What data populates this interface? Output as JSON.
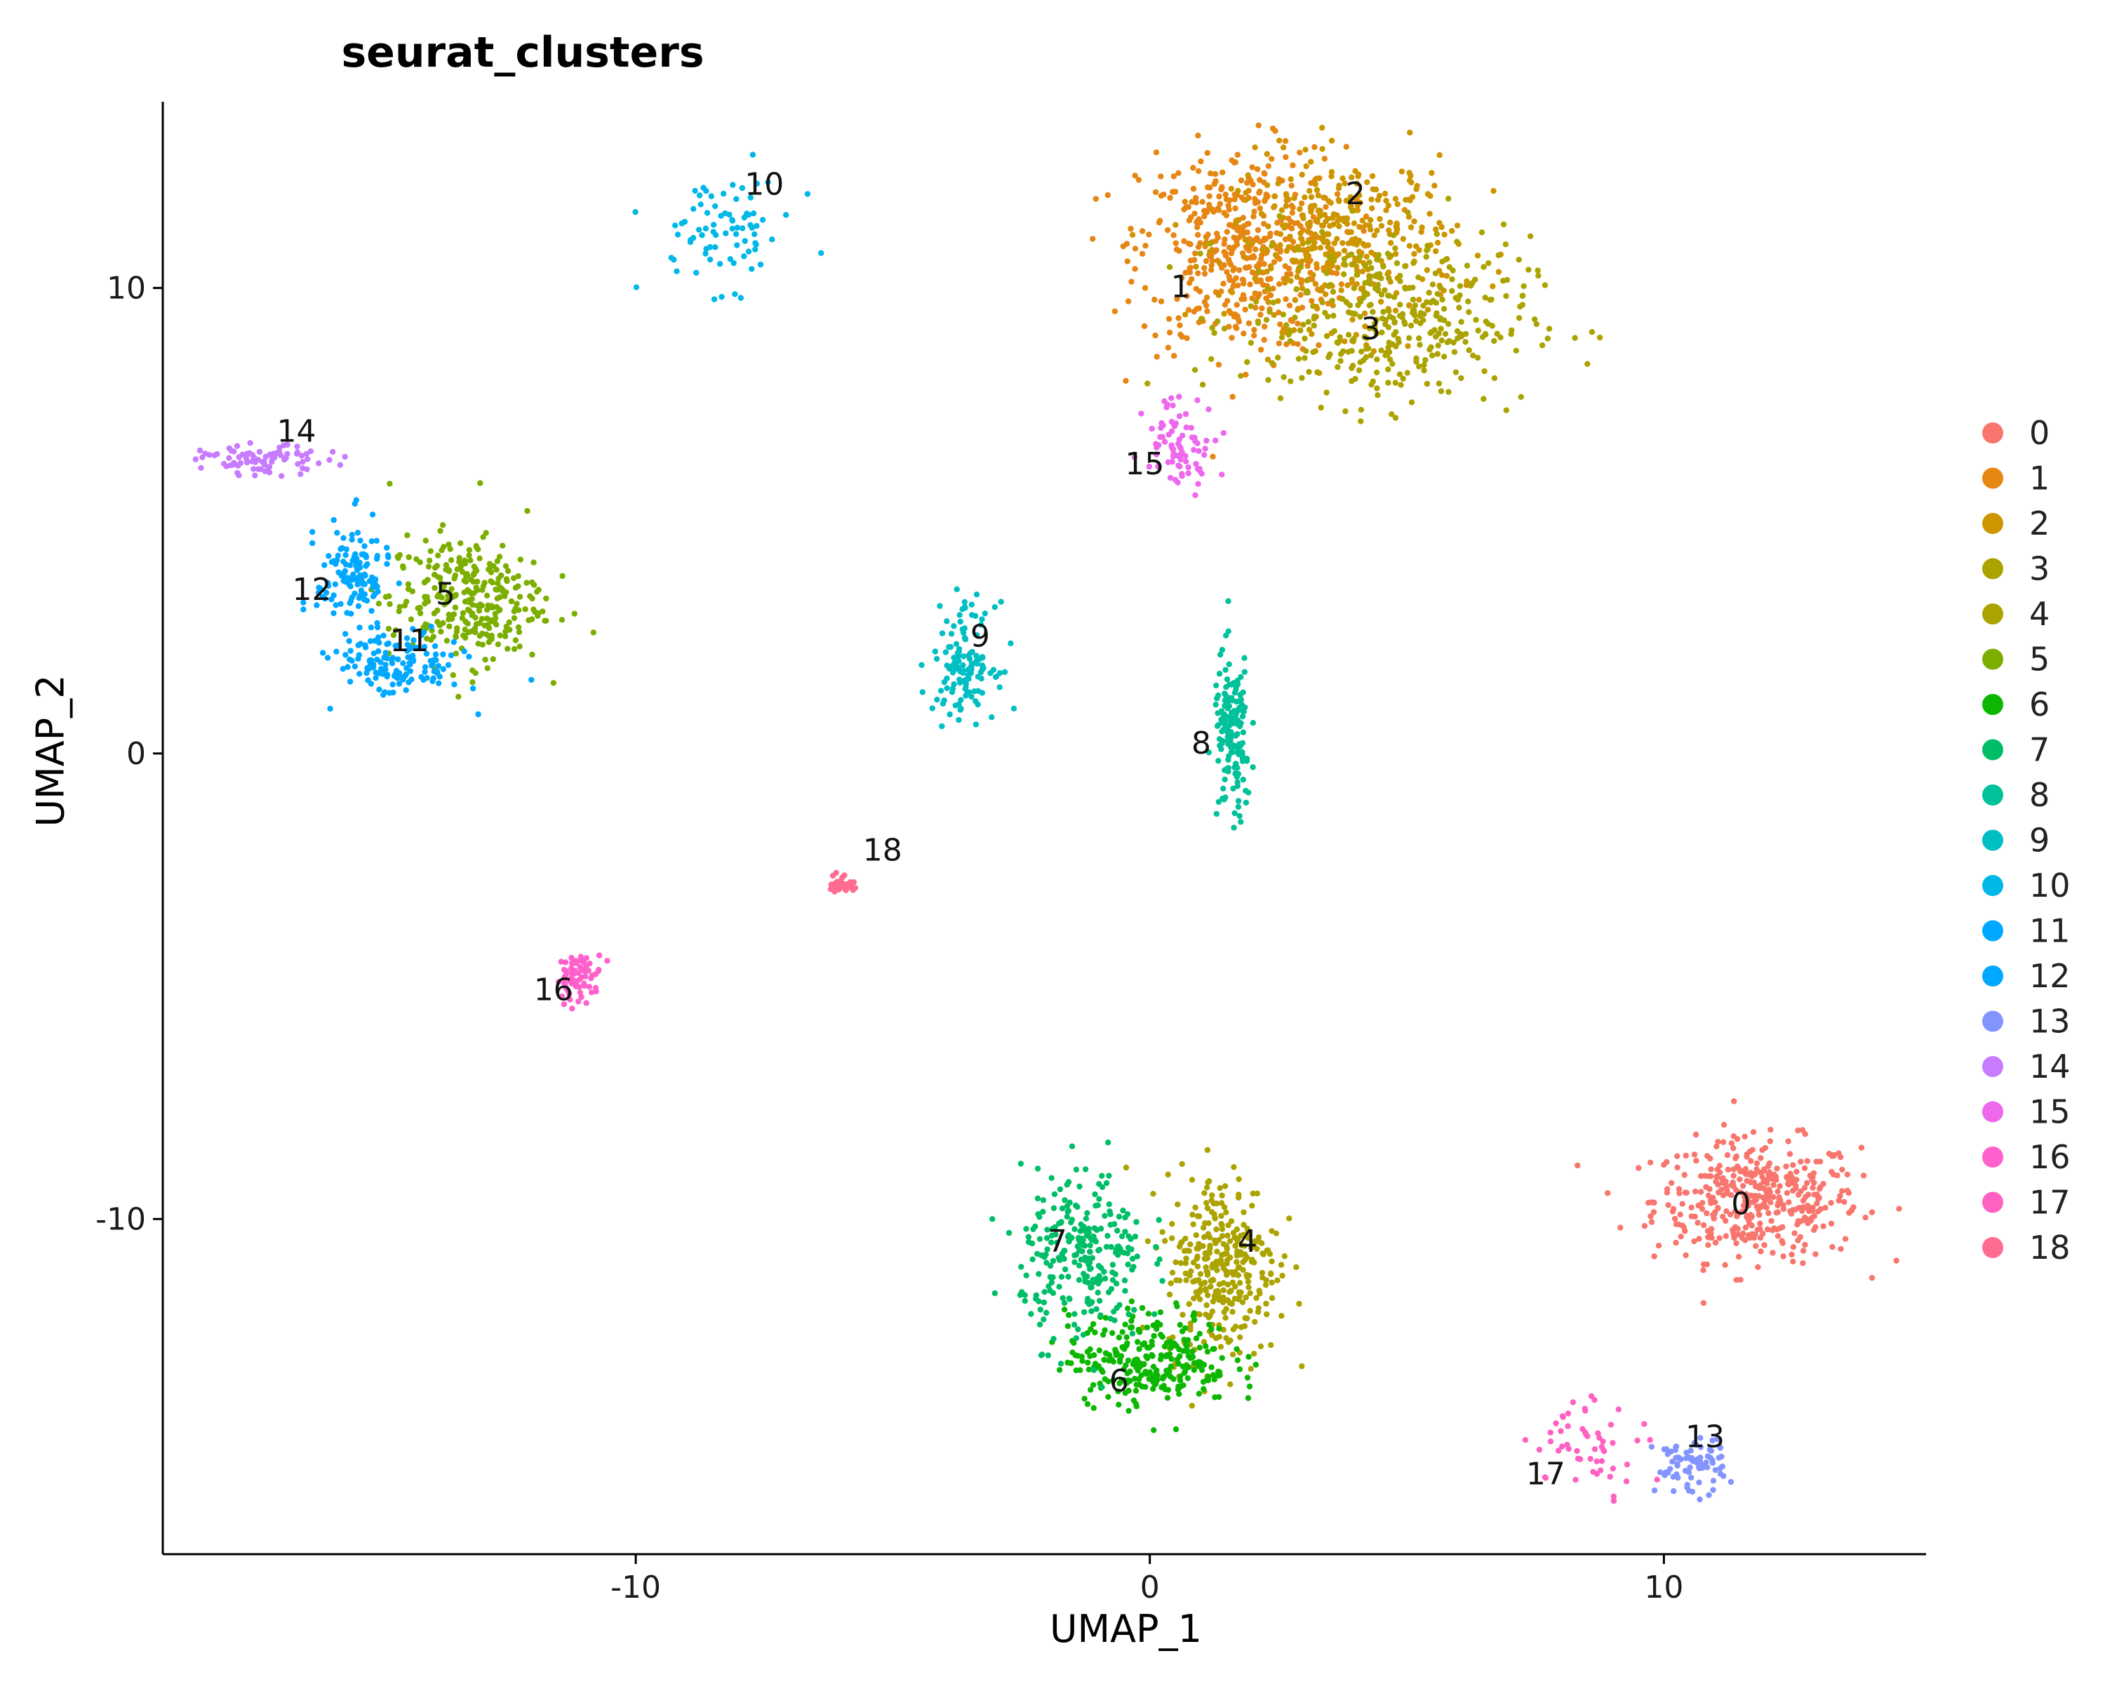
{
  "chart_data": {
    "type": "scatter",
    "title": "seurat_clusters",
    "xlabel": "UMAP_1",
    "ylabel": "UMAP_2",
    "xlim": [
      -19.2,
      15.1
    ],
    "ylim": [
      -17.2,
      14.0
    ],
    "x_ticks": [
      -10,
      0,
      10
    ],
    "x_tick_labels": [
      "-10",
      "0",
      "10"
    ],
    "y_ticks": [
      -10,
      0,
      10
    ],
    "y_tick_labels": [
      "-10",
      "0",
      "10"
    ],
    "grid": false,
    "legend_position": "right",
    "series": [
      {
        "name": "0",
        "color": "#F8766D",
        "cx": 11.8,
        "cy": -9.6,
        "sx": 1.0,
        "sy": 0.65,
        "n": 420,
        "label_x": 11.5,
        "label_y": -9.9
      },
      {
        "name": "1",
        "color": "#E68613",
        "cx": 1.8,
        "cy": 10.8,
        "sx": 1.0,
        "sy": 1.1,
        "n": 480,
        "label_x": 0.6,
        "label_y": 9.8
      },
      {
        "name": "2",
        "color": "#CD9600",
        "cx": 3.8,
        "cy": 11.0,
        "sx": 1.1,
        "sy": 0.9,
        "n": 380,
        "label_x": 4.0,
        "label_y": 11.8
      },
      {
        "name": "3",
        "color": "#ABA300",
        "cx": 4.6,
        "cy": 9.3,
        "sx": 1.4,
        "sy": 0.9,
        "n": 380,
        "label_x": 4.3,
        "label_y": 8.9
      },
      {
        "name": "4",
        "color": "#ABA300",
        "cx": 1.4,
        "cy": -11.0,
        "sx": 0.55,
        "sy": 1.0,
        "n": 330,
        "label_x": 1.9,
        "label_y": -10.7
      },
      {
        "name": "5",
        "color": "#7CAE00",
        "cx": -13.3,
        "cy": 3.3,
        "sx": 0.75,
        "sy": 0.7,
        "n": 300,
        "label_x": -13.7,
        "label_y": 3.2
      },
      {
        "name": "6",
        "color": "#0CB702",
        "cx": 0.0,
        "cy": -13.0,
        "sx": 0.8,
        "sy": 0.5,
        "n": 280,
        "label_x": -0.6,
        "label_y": -13.7
      },
      {
        "name": "7",
        "color": "#00BE67",
        "cx": -1.3,
        "cy": -10.8,
        "sx": 0.6,
        "sy": 0.9,
        "n": 260,
        "label_x": -1.8,
        "label_y": -10.7
      },
      {
        "name": "8",
        "color": "#00C19A",
        "cx": 1.6,
        "cy": 0.3,
        "sx": 0.18,
        "sy": 0.9,
        "n": 150,
        "label_x": 1.0,
        "label_y": 0.0
      },
      {
        "name": "9",
        "color": "#00BFC4",
        "cx": -3.6,
        "cy": 2.0,
        "sx": 0.3,
        "sy": 0.6,
        "n": 130,
        "label_x": -3.3,
        "label_y": 2.3
      },
      {
        "name": "10",
        "color": "#00B8E7",
        "cx": -8.3,
        "cy": 11.2,
        "sx": 0.7,
        "sy": 0.6,
        "n": 80,
        "label_x": -7.5,
        "label_y": 12.0
      },
      {
        "name": "11",
        "color": "#00A9FF",
        "cx": -14.6,
        "cy": 1.9,
        "sx": 0.6,
        "sy": 0.35,
        "n": 140,
        "label_x": -14.4,
        "label_y": 2.2
      },
      {
        "name": "12",
        "color": "#00A9FF",
        "cx": -15.5,
        "cy": 3.8,
        "sx": 0.35,
        "sy": 0.6,
        "n": 130,
        "label_x": -16.3,
        "label_y": 3.3
      },
      {
        "name": "13",
        "color": "#8494FF",
        "cx": 10.5,
        "cy": -15.3,
        "sx": 0.35,
        "sy": 0.3,
        "n": 80,
        "label_x": 10.8,
        "label_y": -14.9
      },
      {
        "name": "14",
        "color": "#C77CFF",
        "cx": -17.2,
        "cy": 6.3,
        "sx": 0.6,
        "sy": 0.15,
        "n": 85,
        "label_x": -16.6,
        "label_y": 6.7
      },
      {
        "name": "15",
        "color": "#ED68ED",
        "cx": 0.6,
        "cy": 6.7,
        "sx": 0.35,
        "sy": 0.5,
        "n": 80,
        "label_x": -0.1,
        "label_y": 6.0
      },
      {
        "name": "16",
        "color": "#FF61CC",
        "cx": -11.1,
        "cy": -4.8,
        "sx": 0.22,
        "sy": 0.25,
        "n": 70,
        "label_x": -11.6,
        "label_y": -5.3
      },
      {
        "name": "17",
        "color": "#FF61C3",
        "cx": 8.6,
        "cy": -14.8,
        "sx": 0.6,
        "sy": 0.5,
        "n": 55,
        "label_x": 7.7,
        "label_y": -15.7
      },
      {
        "name": "18",
        "color": "#FF6C91",
        "cx": -6.0,
        "cy": -2.8,
        "sx": 0.12,
        "sy": 0.1,
        "n": 35,
        "label_x": -5.2,
        "label_y": -2.3
      }
    ]
  }
}
